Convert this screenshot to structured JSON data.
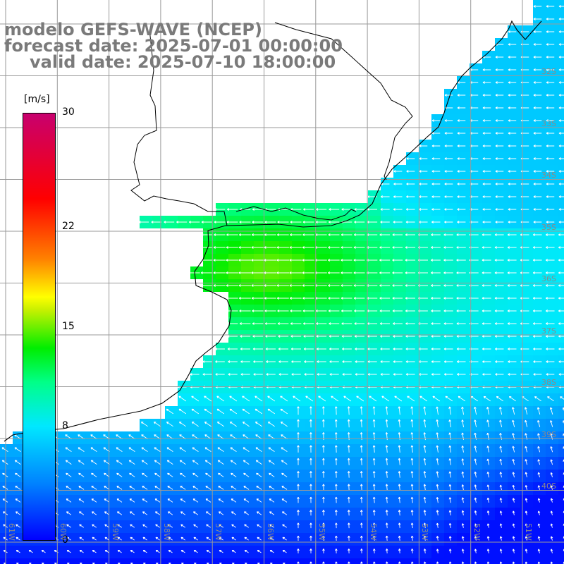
{
  "title": {
    "line1": "modelo GEFS-WAVE (NCEP)",
    "line2": "forecast date: 2025-07-01 00:00:00",
    "line3": "valid date: 2025-07-10 18:00:00"
  },
  "colorbar": {
    "unit": "[m/s]",
    "ticks": [
      "30",
      "22",
      "15",
      "8",
      "0"
    ],
    "tick_values": [
      30,
      22,
      15,
      8,
      0
    ]
  },
  "lon_labels": [
    "61W",
    "60W",
    "59W",
    "58W",
    "57W",
    "56W",
    "55W",
    "54W",
    "53W",
    "52W",
    "51W"
  ],
  "lat_labels": [
    "32S",
    "33S",
    "34S",
    "35S",
    "36S",
    "37S",
    "38S",
    "39S",
    "40S"
  ],
  "colors": {
    "land": "#ffffff",
    "grid": "#9a9a9a",
    "coast": "#000000",
    "title": "#7a7a7a",
    "vectors": "#ffffff"
  }
}
